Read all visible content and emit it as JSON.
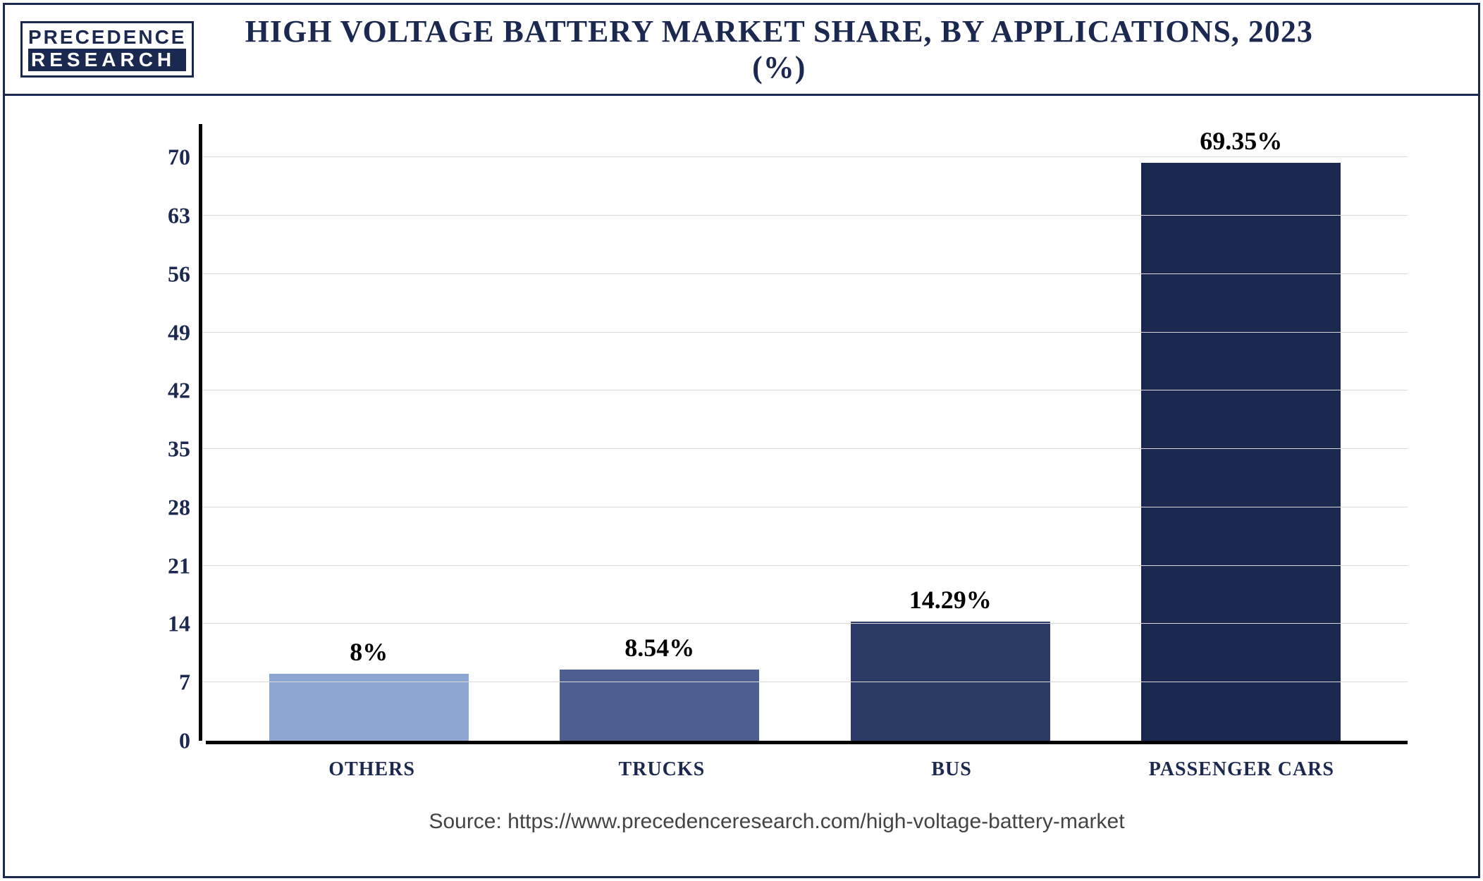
{
  "logo": {
    "line1": "PRECEDENCE",
    "line2": "RESEARCH"
  },
  "title": "HIGH VOLTAGE BATTERY MARKET SHARE, BY APPLICATIONS, 2023 (%)",
  "chart": {
    "type": "bar",
    "categories": [
      "OTHERS",
      "TRUCKS",
      "BUS",
      "PASSENGER CARS"
    ],
    "values": [
      8,
      8.54,
      14.29,
      69.35
    ],
    "value_labels": [
      "8%",
      "8.54%",
      "14.29%",
      "69.35%"
    ],
    "bar_colors": [
      "#8ea6d2",
      "#4d5f90",
      "#2b3a66",
      "#1b2951"
    ],
    "ylim": [
      0,
      74
    ],
    "yticks": [
      0,
      7,
      14,
      21,
      28,
      35,
      42,
      49,
      56,
      63,
      70
    ],
    "background_color": "#ffffff",
    "grid_color": "#d9d9d9",
    "axis_color": "#000000",
    "title_fontsize": 44,
    "label_fontsize": 28,
    "value_fontsize": 36,
    "tick_fontsize": 32,
    "bar_width_pct": 78,
    "frame_color": "#1b2951"
  },
  "source": "Source: https://www.precedenceresearch.com/high-voltage-battery-market"
}
